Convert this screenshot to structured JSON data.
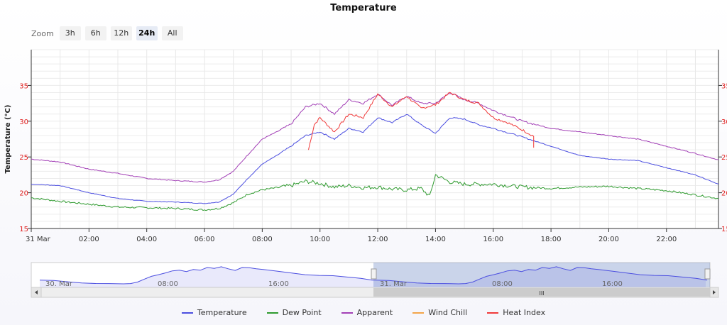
{
  "zoom": {
    "label": "Zoom",
    "buttons": [
      {
        "label": "3h",
        "active": false
      },
      {
        "label": "6h",
        "active": false
      },
      {
        "label": "12h",
        "active": false
      },
      {
        "label": "24h",
        "active": true
      },
      {
        "label": "All",
        "active": false
      }
    ]
  },
  "chart_data": {
    "type": "line",
    "title": "Temperature",
    "ylabel": "Temperature (°C)",
    "ylim": [
      15,
      40
    ],
    "y_ticks": [
      "15",
      "20",
      "25",
      "30",
      "35"
    ],
    "x_ticks": [
      "31 Mar",
      "02:00",
      "04:00",
      "06:00",
      "08:00",
      "10:00",
      "12:00",
      "14:00",
      "16:00",
      "18:00",
      "20:00",
      "22:00"
    ],
    "xlim_hours": [
      0,
      23.8
    ],
    "grid": true,
    "legend_position": "bottom",
    "colors": {
      "Temperature": "#4b4ee0",
      "Dew Point": "#2e9a2e",
      "Apparent": "#a23fb6",
      "Wind Chill": "#f3a54a",
      "Heat Index": "#f03a3a",
      "right_axis": "#e0201f"
    },
    "series": [
      {
        "name": "Temperature",
        "x": [
          0,
          1,
          2,
          3,
          4,
          5,
          6,
          6.5,
          7,
          7.5,
          8,
          8.5,
          9,
          9.5,
          10,
          10.5,
          11,
          11.5,
          12,
          12.5,
          13,
          13.5,
          14,
          14.5,
          15,
          15.5,
          16,
          17,
          18,
          19,
          20,
          21,
          22,
          23,
          23.8
        ],
        "y": [
          21.2,
          21.0,
          20.0,
          19.2,
          18.8,
          18.7,
          18.5,
          18.7,
          19.8,
          22.0,
          24.0,
          25.2,
          26.5,
          28.0,
          28.5,
          27.5,
          29.0,
          28.5,
          30.5,
          29.8,
          31.0,
          29.5,
          28.3,
          30.5,
          30.3,
          29.5,
          29.0,
          27.8,
          26.5,
          25.2,
          24.7,
          24.5,
          23.5,
          22.5,
          21.2
        ]
      },
      {
        "name": "Dew Point",
        "x": [
          0,
          1,
          2,
          3,
          4,
          5,
          6,
          6.5,
          7,
          7.5,
          8,
          8.5,
          9,
          9.5,
          10,
          10.5,
          11,
          11.5,
          12,
          12.5,
          13,
          13.5,
          13.8,
          14,
          14.5,
          15,
          16,
          17,
          18,
          19,
          20,
          21,
          22,
          23,
          23.8
        ],
        "y": [
          19.3,
          18.8,
          18.4,
          18.0,
          17.9,
          17.8,
          17.6,
          17.8,
          18.6,
          19.8,
          20.4,
          20.7,
          21.0,
          21.6,
          21.3,
          20.8,
          21.0,
          20.7,
          20.8,
          20.5,
          20.4,
          20.6,
          19.5,
          22.5,
          21.5,
          21.2,
          21.2,
          20.8,
          20.6,
          20.8,
          20.9,
          20.6,
          20.3,
          19.7,
          19.2
        ]
      },
      {
        "name": "Apparent",
        "x": [
          0,
          1,
          2,
          3,
          4,
          5,
          6,
          6.5,
          7,
          7.5,
          8,
          8.5,
          9,
          9.5,
          10,
          10.5,
          11,
          11.5,
          12,
          12.5,
          13,
          13.5,
          14,
          14.5,
          15,
          15.5,
          16,
          17,
          18,
          19,
          20,
          21,
          22,
          23,
          23.8
        ],
        "y": [
          24.7,
          24.3,
          23.3,
          22.7,
          22.0,
          21.7,
          21.5,
          21.8,
          23.0,
          25.3,
          27.5,
          28.5,
          29.6,
          32.0,
          32.5,
          31.0,
          33.0,
          32.5,
          33.8,
          32.2,
          33.5,
          32.5,
          32.5,
          34.0,
          33.0,
          32.5,
          31.5,
          30.0,
          29.0,
          28.5,
          28.0,
          27.5,
          26.5,
          25.5,
          24.6
        ]
      },
      {
        "name": "Wind Chill",
        "x": [],
        "y": []
      },
      {
        "name": "Heat Index",
        "x": [
          9.6,
          9.8,
          10,
          10.5,
          11,
          11.5,
          12,
          12.5,
          13,
          13.5,
          14,
          14.5,
          15,
          15.5,
          16,
          16.5,
          17,
          17.4,
          17.4
        ],
        "y": [
          26.0,
          29.5,
          30.5,
          28.5,
          31.0,
          30.5,
          33.8,
          32.0,
          33.5,
          31.8,
          32.3,
          34.0,
          33.0,
          32.5,
          30.5,
          29.8,
          28.8,
          27.9,
          26.3
        ]
      }
    ]
  },
  "navigator": {
    "labels": [
      "30. Mar",
      "08:00",
      "16:00",
      "31. Mar",
      "08:00",
      "16:00"
    ],
    "scroll_thumb": "III"
  }
}
